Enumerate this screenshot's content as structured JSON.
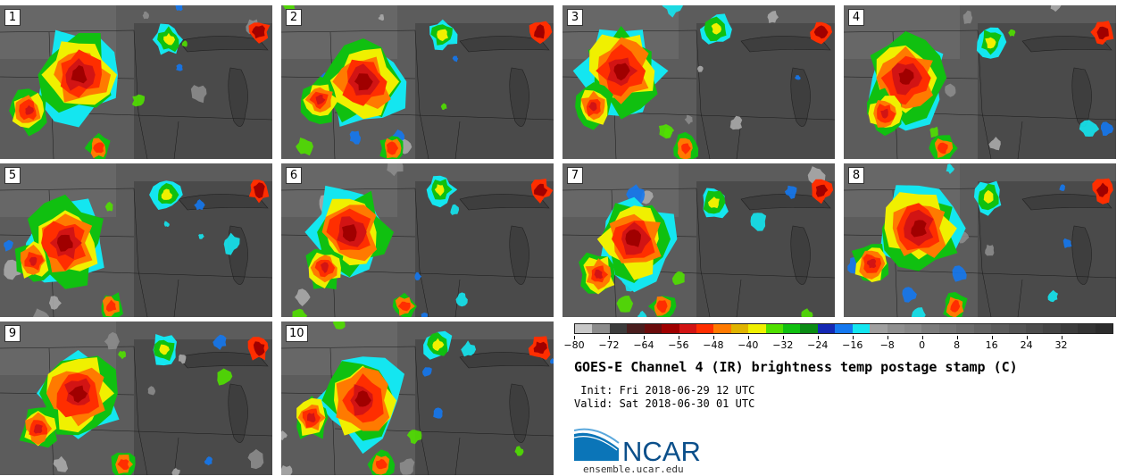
{
  "panels": [
    {
      "label": "1"
    },
    {
      "label": "2"
    },
    {
      "label": "3"
    },
    {
      "label": "4"
    },
    {
      "label": "5"
    },
    {
      "label": "6"
    },
    {
      "label": "7"
    },
    {
      "label": "8"
    },
    {
      "label": "9"
    },
    {
      "label": "10"
    }
  ],
  "colorbar": {
    "colors": [
      "#c8c8c8",
      "#8c8c8c",
      "#3c3c3c",
      "#4a1e1e",
      "#6b0c0c",
      "#a00000",
      "#d21414",
      "#ff2e00",
      "#ff7a00",
      "#e0b400",
      "#f0f000",
      "#50e000",
      "#10c010",
      "#0a8c14",
      "#1428b4",
      "#1478f0",
      "#14e6f0",
      "#a0a0a0",
      "#909090",
      "#888888",
      "#7c7c7c",
      "#747474",
      "#6c6c6c",
      "#646464",
      "#5c5c5c",
      "#545454",
      "#4c4c4c",
      "#444444",
      "#3c3c3c",
      "#343434",
      "#2c2c2c"
    ],
    "tick_labels": [
      "−80",
      "−72",
      "−64",
      "−56",
      "−48",
      "−40",
      "−32",
      "−24",
      "−16",
      "−8",
      "0",
      "8",
      "16",
      "24",
      "32"
    ]
  },
  "title": "GOES-E Channel 4 (IR) brightness temp postage stamp (C)",
  "init_text": " Init: Fri 2018-06-29 12 UTC",
  "valid_text": "Valid: Sat 2018-06-30 01 UTC",
  "logo_text": "NCAR",
  "site": "ensemble.ucar.edu"
}
